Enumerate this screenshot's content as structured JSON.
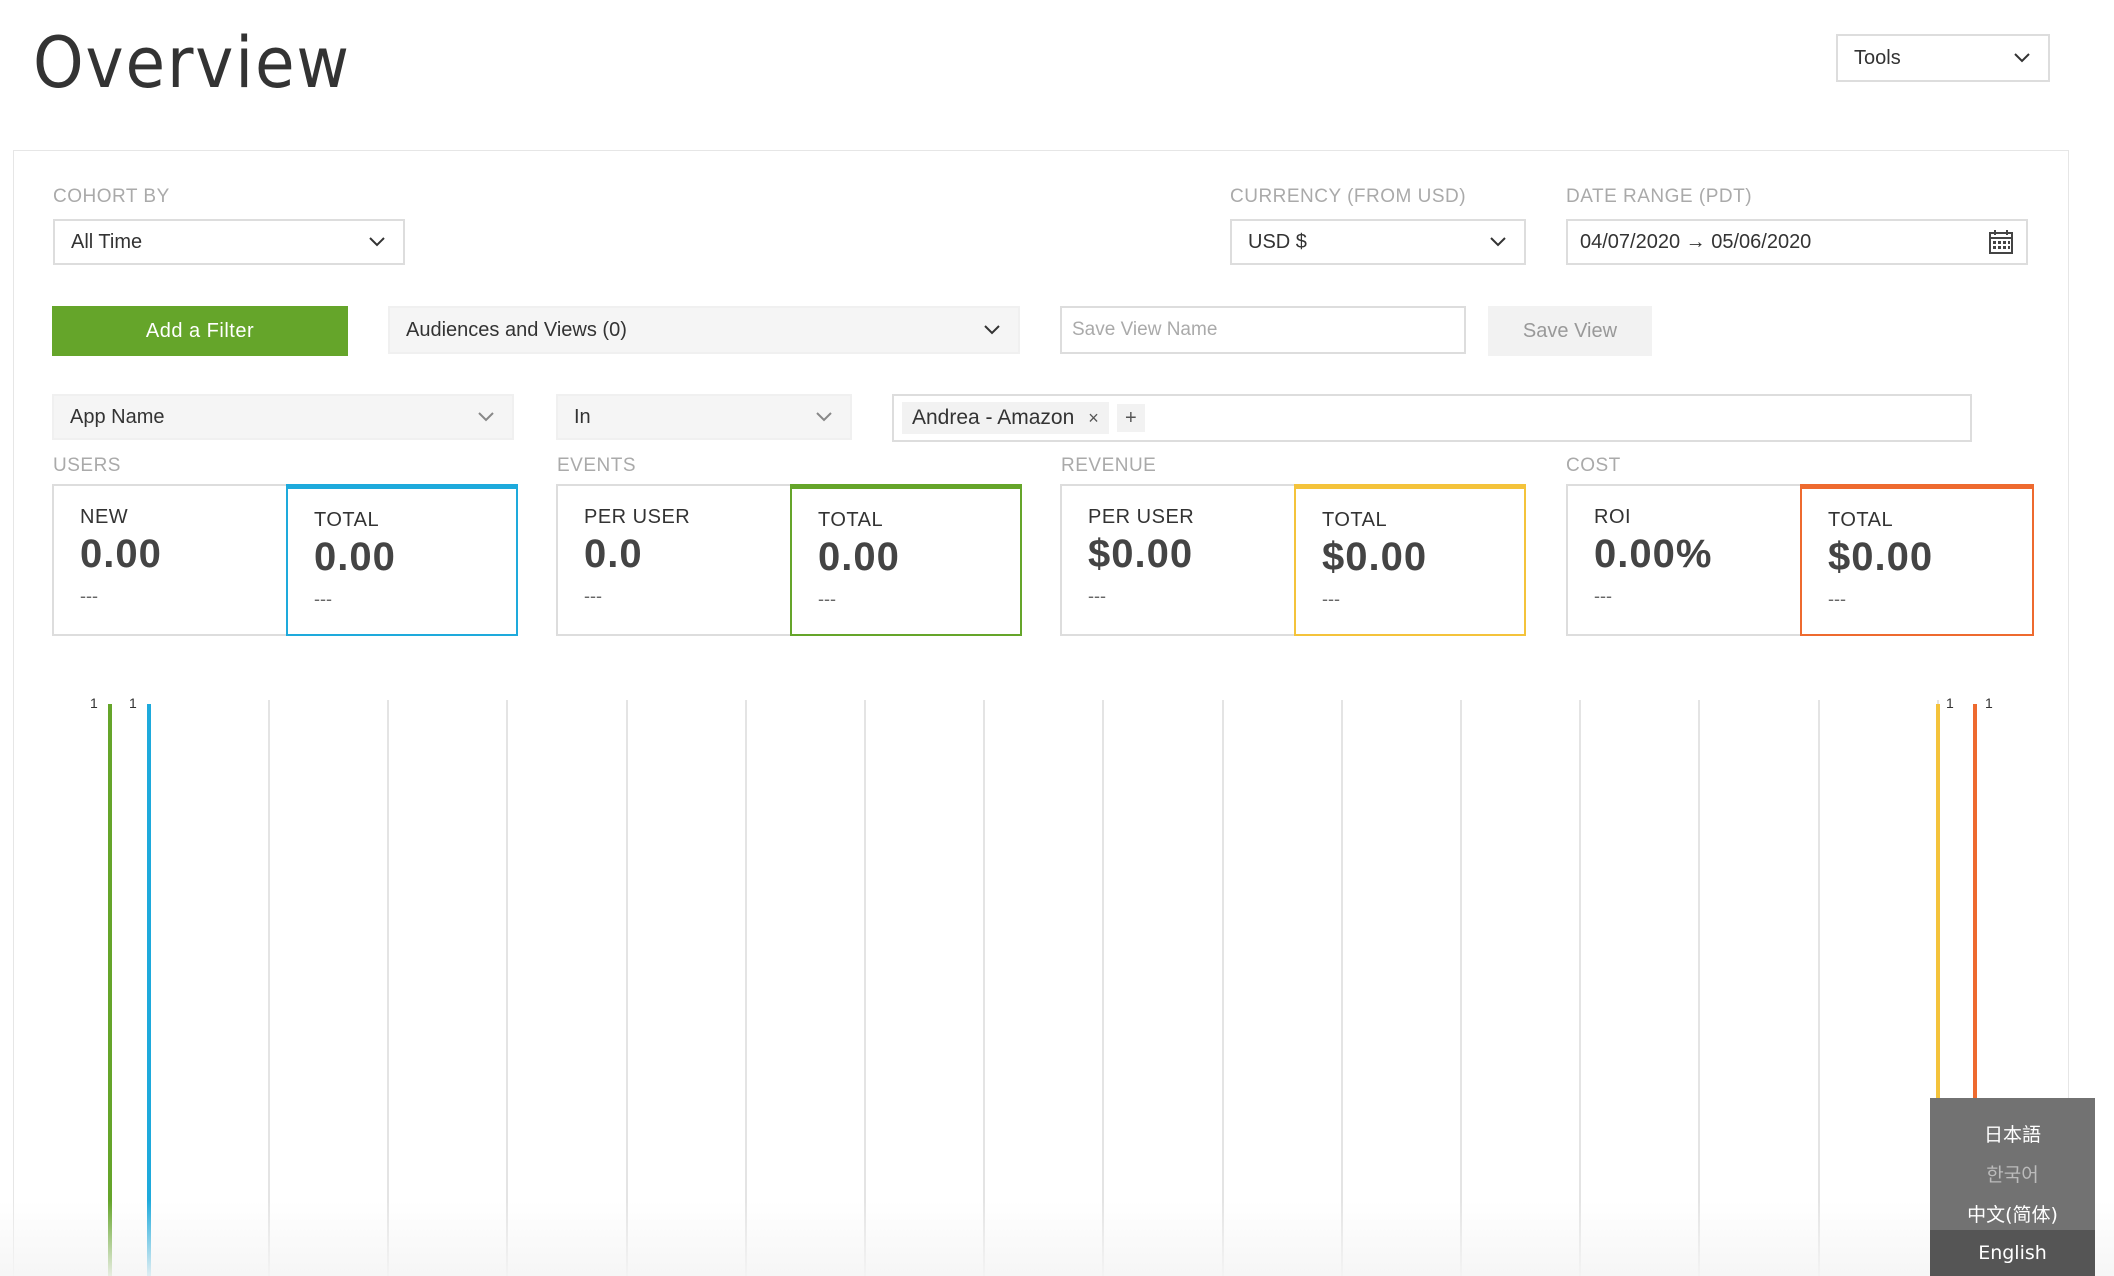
{
  "page": {
    "title": "Overview"
  },
  "tools": {
    "label": "Tools"
  },
  "controls": {
    "cohort_label": "COHORT BY",
    "cohort_value": "All Time",
    "currency_label": "CURRENCY (FROM USD)",
    "currency_value": "USD $",
    "date_label": "DATE RANGE (PDT)",
    "date_value": "04/07/2020 → 05/06/2020"
  },
  "filter_bar": {
    "add_filter": "Add a Filter",
    "audiences": "Audiences and Views (0)",
    "save_view_placeholder": "Save View Name",
    "save_view": "Save View"
  },
  "filter": {
    "field": "App Name",
    "operator": "In",
    "tags": [
      "Andrea - Amazon"
    ],
    "remove_symbol": "×",
    "add_symbol": "+"
  },
  "metrics": {
    "users": {
      "label": "USERS",
      "cards": [
        {
          "title": "NEW",
          "value": "0.00",
          "delta": "---"
        },
        {
          "title": "TOTAL",
          "value": "0.00",
          "delta": "---"
        }
      ]
    },
    "events": {
      "label": "EVENTS",
      "cards": [
        {
          "title": "PER USER",
          "value": "0.0",
          "delta": "---"
        },
        {
          "title": "TOTAL",
          "value": "0.00",
          "delta": "---"
        }
      ]
    },
    "revenue": {
      "label": "REVENUE",
      "cards": [
        {
          "title": "PER USER",
          "value": "$0.00",
          "delta": "---"
        },
        {
          "title": "TOTAL",
          "value": "$0.00",
          "delta": "---"
        }
      ]
    },
    "cost": {
      "label": "COST",
      "cards": [
        {
          "title": "ROI",
          "value": "0.00%",
          "delta": "---"
        },
        {
          "title": "TOTAL",
          "value": "$0.00",
          "delta": "---"
        }
      ]
    }
  },
  "chart": {
    "axis_max_labels": [
      "1",
      "1",
      "1",
      "1"
    ]
  },
  "languages": [
    {
      "label": "日本語",
      "active": false
    },
    {
      "label": "한국어",
      "active": false
    },
    {
      "label": "中文(简体)",
      "active": false
    },
    {
      "label": "English",
      "active": true
    }
  ],
  "colors": {
    "green": "#65a52a",
    "blue": "#1eaadc",
    "yellow": "#f4c33b",
    "orange": "#ee6a2f"
  }
}
